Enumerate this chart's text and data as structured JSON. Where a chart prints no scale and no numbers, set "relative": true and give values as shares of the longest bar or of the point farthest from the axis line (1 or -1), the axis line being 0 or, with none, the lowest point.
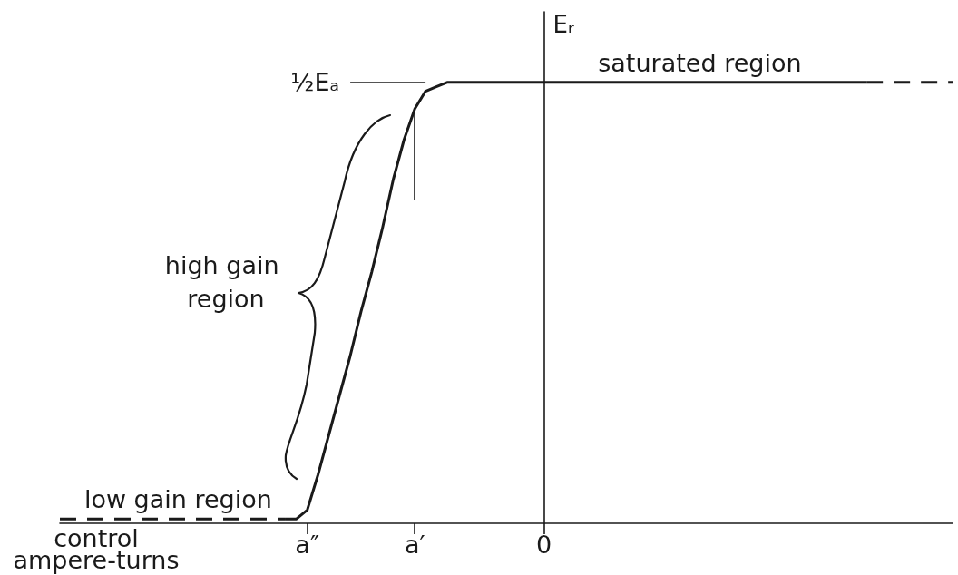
{
  "chart_data": {
    "type": "line",
    "relative": true,
    "xlabel": "control ampere-turns",
    "ylabel": "Eᵣ",
    "marker": "none",
    "categories": [
      null,
      null,
      null,
      null,
      null,
      null,
      null,
      null,
      null,
      null,
      null,
      null,
      null,
      null,
      null,
      null,
      null,
      null,
      null,
      null,
      null,
      null,
      null,
      "a″",
      null,
      null,
      null,
      null,
      null,
      null,
      null,
      null,
      null,
      "a′",
      null,
      null,
      null,
      null,
      null,
      null,
      null,
      null,
      null,
      null,
      null,
      "0",
      null,
      null,
      null,
      null,
      null,
      null,
      null,
      null,
      null,
      null,
      null,
      null,
      null,
      null,
      null,
      null,
      null,
      null,
      null,
      null,
      null,
      null,
      null,
      null,
      null,
      null,
      null,
      null,
      null,
      null,
      null,
      null,
      null,
      null,
      null,
      null,
      null,
      null
    ],
    "series": [
      {
        "color": "#1a1a1a",
        "line_style": "dashed",
        "values": [
          0.01,
          0.01,
          0.01,
          0.01,
          0.01,
          0.01,
          0.01,
          0.01,
          0.01,
          0.01,
          0.01,
          0.01,
          0.01,
          0.01,
          0.01,
          0.01,
          0.01,
          0.01,
          0.01,
          0.01,
          0.01,
          0.01,
          null,
          null,
          null,
          null,
          null,
          null,
          null,
          null,
          null,
          null,
          null,
          null,
          null,
          null,
          null,
          null,
          null,
          null,
          null,
          null,
          null,
          null,
          null,
          null,
          null,
          null,
          null,
          null,
          null,
          null,
          null,
          null,
          null,
          null,
          null,
          null,
          null,
          null,
          null,
          null,
          null,
          null,
          null,
          null,
          null,
          null,
          null,
          null,
          null,
          null,
          null,
          null,
          null,
          null,
          null,
          null,
          null,
          null,
          null,
          null,
          null,
          null
        ]
      },
      {
        "color": "#1a1a1a",
        "line_style": "solid",
        "values": [
          null,
          null,
          null,
          null,
          null,
          null,
          null,
          null,
          null,
          null,
          null,
          null,
          null,
          null,
          null,
          null,
          null,
          null,
          null,
          null,
          null,
          0.01,
          0.01,
          0.03,
          0.11,
          0.2,
          0.29,
          0.38,
          0.48,
          0.57,
          0.67,
          0.78,
          0.87,
          0.94,
          0.98,
          0.99,
          1,
          1,
          1,
          1,
          1,
          1,
          1,
          1,
          1,
          1,
          1,
          1,
          1,
          1,
          1,
          1,
          1,
          1,
          1,
          1,
          1,
          1,
          1,
          1,
          1,
          1,
          1,
          1,
          1,
          1,
          1,
          1,
          1,
          1,
          1,
          1,
          1,
          1,
          1,
          1,
          null,
          null,
          null,
          null,
          null,
          null,
          null,
          null
        ]
      },
      {
        "color": "#1a1a1a",
        "line_style": "dashed",
        "values": [
          null,
          null,
          null,
          null,
          null,
          null,
          null,
          null,
          null,
          null,
          null,
          null,
          null,
          null,
          null,
          null,
          null,
          null,
          null,
          null,
          null,
          null,
          null,
          null,
          null,
          null,
          null,
          null,
          null,
          null,
          null,
          null,
          null,
          null,
          null,
          null,
          null,
          null,
          null,
          null,
          null,
          null,
          null,
          null,
          null,
          null,
          null,
          null,
          null,
          null,
          null,
          null,
          null,
          null,
          null,
          null,
          null,
          null,
          null,
          null,
          null,
          null,
          null,
          null,
          null,
          null,
          null,
          null,
          null,
          null,
          null,
          null,
          null,
          null,
          null,
          1,
          1,
          1,
          1,
          1,
          1,
          1,
          1,
          1
        ]
      }
    ],
    "ref_lines": [
      {
        "axis": "y",
        "value": 1,
        "label": "½Eₐ"
      },
      {
        "axis": "x",
        "value": "a′"
      }
    ],
    "annotations": [
      {
        "text": "saturated region",
        "y": 1
      },
      "high gain region",
      {
        "text": "low gain region",
        "y": 0.01
      }
    ]
  }
}
